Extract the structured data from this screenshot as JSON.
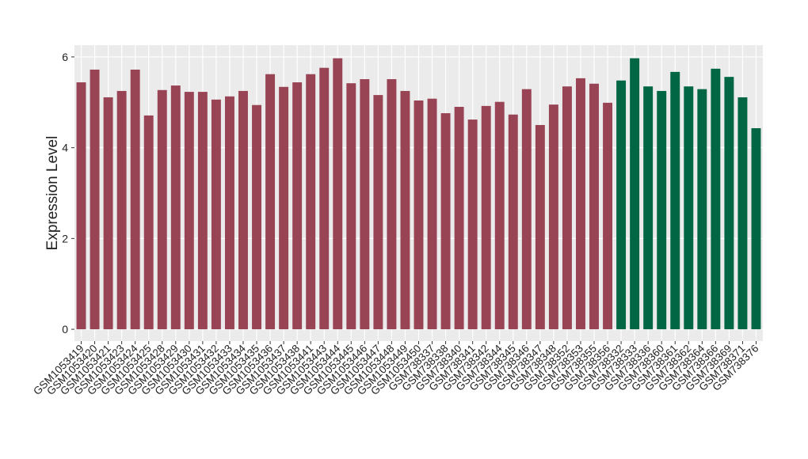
{
  "chart_data": {
    "type": "bar",
    "y_label": "Expression Level",
    "categories": [
      "GSM1053419",
      "GSM1053420",
      "GSM1053421",
      "GSM1053423",
      "GSM1053424",
      "GSM1053425",
      "GSM1053428",
      "GSM1053429",
      "GSM1053430",
      "GSM1053431",
      "GSM1053432",
      "GSM1053433",
      "GSM1053434",
      "GSM1053435",
      "GSM1053436",
      "GSM1053437",
      "GSM1053438",
      "GSM1053441",
      "GSM1053443",
      "GSM1053444",
      "GSM1053445",
      "GSM1053446",
      "GSM1053447",
      "GSM1053448",
      "GSM1053449",
      "GSM1053450",
      "GSM738337",
      "GSM738338",
      "GSM738340",
      "GSM738341",
      "GSM738342",
      "GSM738344",
      "GSM738345",
      "GSM738346",
      "GSM738347",
      "GSM738348",
      "GSM738352",
      "GSM738353",
      "GSM738355",
      "GSM738356",
      "GSM738332",
      "GSM738333",
      "GSM738336",
      "GSM738360",
      "GSM738361",
      "GSM738362",
      "GSM738364",
      "GSM738366",
      "GSM738369",
      "GSM738371",
      "GSM738376"
    ],
    "values": [
      5.44,
      5.72,
      5.11,
      5.25,
      5.72,
      4.71,
      5.27,
      5.37,
      5.23,
      5.23,
      5.06,
      5.13,
      5.25,
      4.94,
      5.62,
      5.34,
      5.44,
      5.62,
      5.76,
      5.97,
      5.42,
      5.51,
      5.16,
      5.51,
      5.25,
      5.04,
      5.08,
      4.76,
      4.9,
      4.62,
      4.92,
      5.01,
      4.73,
      5.29,
      4.5,
      4.95,
      5.35,
      5.53,
      5.41,
      4.99,
      5.48,
      5.97,
      5.35,
      5.25,
      5.67,
      5.35,
      5.29,
      5.74,
      5.56,
      5.11,
      4.43
    ],
    "colors": [
      "#994455",
      "#994455",
      "#994455",
      "#994455",
      "#994455",
      "#994455",
      "#994455",
      "#994455",
      "#994455",
      "#994455",
      "#994455",
      "#994455",
      "#994455",
      "#994455",
      "#994455",
      "#994455",
      "#994455",
      "#994455",
      "#994455",
      "#994455",
      "#994455",
      "#994455",
      "#994455",
      "#994455",
      "#994455",
      "#994455",
      "#994455",
      "#994455",
      "#994455",
      "#994455",
      "#994455",
      "#994455",
      "#994455",
      "#994455",
      "#994455",
      "#994455",
      "#994455",
      "#994455",
      "#994455",
      "#994455",
      "#006644",
      "#006644",
      "#006644",
      "#006644",
      "#006644",
      "#006644",
      "#006644",
      "#006644",
      "#006644",
      "#006644",
      "#006644"
    ],
    "ylim": [
      -0.26,
      6.26
    ],
    "yticks": [
      0,
      2,
      4,
      6
    ],
    "grid": true,
    "panel_color": "#ebebeb"
  }
}
